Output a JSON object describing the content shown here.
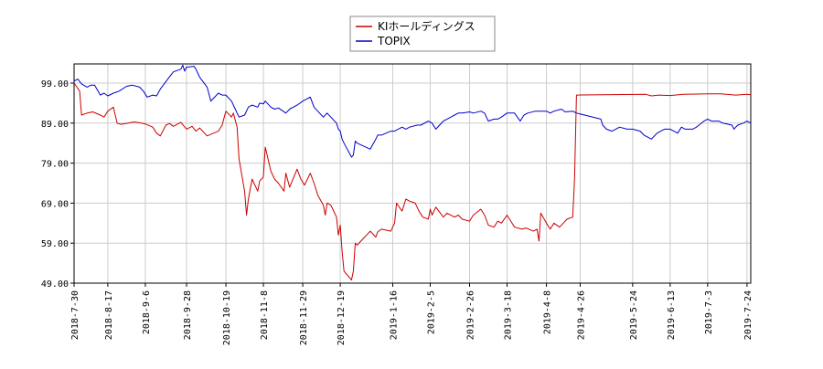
{
  "chart_data": {
    "type": "line",
    "title": "",
    "xlabel": "",
    "ylabel": "",
    "ylim": [
      49,
      99
    ],
    "yticks": [
      "99.00",
      "89.00",
      "79.00",
      "69.00",
      "59.00",
      "49.00"
    ],
    "ytick_values": [
      99,
      89,
      79,
      69,
      59,
      49
    ],
    "xlim": [
      "2018-07-30",
      "2019-07-26"
    ],
    "xticks": [
      "2018-7-30",
      "2018-8-17",
      "2018-9-6",
      "2018-9-28",
      "2018-10-19",
      "2018-11-8",
      "2018-11-29",
      "2018-12-19",
      "2019-1-16",
      "2019-2-5",
      "2019-2-26",
      "2019-3-18",
      "2019-4-8",
      "2019-4-26",
      "2019-5-24",
      "2019-6-13",
      "2019-7-3",
      "2019-7-24"
    ],
    "xtick_dates": [
      "2018-07-30",
      "2018-08-17",
      "2018-09-06",
      "2018-09-28",
      "2018-10-19",
      "2018-11-08",
      "2018-11-29",
      "2018-12-19",
      "2019-01-16",
      "2019-02-05",
      "2019-02-26",
      "2019-03-18",
      "2019-04-08",
      "2019-04-26",
      "2019-05-24",
      "2019-06-13",
      "2019-07-03",
      "2019-07-24"
    ],
    "grid": true,
    "legend_position": "top",
    "series": [
      {
        "name": "KIホールディングス",
        "color": "#cc0000",
        "points": [
          [
            "2018-07-30",
            99.0
          ],
          [
            "2018-08-02",
            97.0
          ],
          [
            "2018-08-03",
            91.0
          ],
          [
            "2018-08-06",
            91.5
          ],
          [
            "2018-08-09",
            91.8
          ],
          [
            "2018-08-13",
            91.0
          ],
          [
            "2018-08-15",
            90.5
          ],
          [
            "2018-08-17",
            92.0
          ],
          [
            "2018-08-20",
            93.0
          ],
          [
            "2018-08-22",
            89.0
          ],
          [
            "2018-08-24",
            88.7
          ],
          [
            "2018-08-28",
            89.0
          ],
          [
            "2018-08-31",
            89.3
          ],
          [
            "2018-09-04",
            89.0
          ],
          [
            "2018-09-06",
            88.8
          ],
          [
            "2018-09-10",
            88.0
          ],
          [
            "2018-09-12",
            86.5
          ],
          [
            "2018-09-14",
            85.8
          ],
          [
            "2018-09-17",
            88.5
          ],
          [
            "2018-09-19",
            88.9
          ],
          [
            "2018-09-21",
            88.2
          ],
          [
            "2018-09-25",
            89.2
          ],
          [
            "2018-09-28",
            87.5
          ],
          [
            "2018-10-01",
            88.2
          ],
          [
            "2018-10-03",
            87.0
          ],
          [
            "2018-10-05",
            87.8
          ],
          [
            "2018-10-09",
            85.8
          ],
          [
            "2018-10-11",
            86.2
          ],
          [
            "2018-10-15",
            87.0
          ],
          [
            "2018-10-17",
            88.5
          ],
          [
            "2018-10-19",
            92.0
          ],
          [
            "2018-10-22",
            90.5
          ],
          [
            "2018-10-23",
            91.5
          ],
          [
            "2018-10-25",
            88.0
          ],
          [
            "2018-10-26",
            80.0
          ],
          [
            "2018-10-29",
            72.0
          ],
          [
            "2018-10-30",
            66.0
          ],
          [
            "2018-10-31",
            70.0
          ],
          [
            "2018-11-02",
            75.0
          ],
          [
            "2018-11-05",
            72.0
          ],
          [
            "2018-11-06",
            74.5
          ],
          [
            "2018-11-08",
            75.5
          ],
          [
            "2018-11-09",
            83.0
          ],
          [
            "2018-11-12",
            77.0
          ],
          [
            "2018-11-14",
            75.0
          ],
          [
            "2018-11-16",
            74.0
          ],
          [
            "2018-11-19",
            72.0
          ],
          [
            "2018-11-20",
            76.5
          ],
          [
            "2018-11-22",
            73.0
          ],
          [
            "2018-11-26",
            77.5
          ],
          [
            "2018-11-28",
            75.0
          ],
          [
            "2018-11-30",
            73.5
          ],
          [
            "2018-12-03",
            76.5
          ],
          [
            "2018-12-05",
            74.0
          ],
          [
            "2018-12-07",
            71.0
          ],
          [
            "2018-12-10",
            68.5
          ],
          [
            "2018-12-11",
            66.0
          ],
          [
            "2018-12-12",
            69.0
          ],
          [
            "2018-12-14",
            68.5
          ],
          [
            "2018-12-17",
            65.5
          ],
          [
            "2018-12-18",
            61.0
          ],
          [
            "2018-12-19",
            63.5
          ],
          [
            "2018-12-20",
            57.0
          ],
          [
            "2018-12-21",
            52.0
          ],
          [
            "2018-12-25",
            49.8
          ],
          [
            "2018-12-26",
            52.0
          ],
          [
            "2018-12-27",
            59.0
          ],
          [
            "2018-12-28",
            58.5
          ],
          [
            "2019-01-04",
            62.0
          ],
          [
            "2019-01-07",
            60.5
          ],
          [
            "2019-01-08",
            61.8
          ],
          [
            "2019-01-10",
            62.5
          ],
          [
            "2019-01-15",
            62.0
          ],
          [
            "2019-01-17",
            64.0
          ],
          [
            "2019-01-18",
            69.0
          ],
          [
            "2019-01-21",
            67.0
          ],
          [
            "2019-01-23",
            70.0
          ],
          [
            "2019-01-25",
            69.5
          ],
          [
            "2019-01-28",
            69.0
          ],
          [
            "2019-01-30",
            67.0
          ],
          [
            "2019-02-01",
            65.5
          ],
          [
            "2019-02-04",
            65.0
          ],
          [
            "2019-02-05",
            67.5
          ],
          [
            "2019-02-06",
            66.0
          ],
          [
            "2019-02-08",
            68.0
          ],
          [
            "2019-02-12",
            65.5
          ],
          [
            "2019-02-14",
            66.5
          ],
          [
            "2019-02-18",
            65.5
          ],
          [
            "2019-02-20",
            66.0
          ],
          [
            "2019-02-22",
            65.0
          ],
          [
            "2019-02-26",
            64.5
          ],
          [
            "2019-02-28",
            66.0
          ],
          [
            "2019-03-04",
            67.5
          ],
          [
            "2019-03-06",
            66.0
          ],
          [
            "2019-03-08",
            63.5
          ],
          [
            "2019-03-11",
            63.0
          ],
          [
            "2019-03-13",
            64.5
          ],
          [
            "2019-03-15",
            64.0
          ],
          [
            "2019-03-18",
            66.0
          ],
          [
            "2019-03-20",
            64.5
          ],
          [
            "2019-03-22",
            63.0
          ],
          [
            "2019-03-26",
            62.5
          ],
          [
            "2019-03-28",
            62.8
          ],
          [
            "2019-04-01",
            62.0
          ],
          [
            "2019-04-03",
            62.5
          ],
          [
            "2019-04-04",
            59.5
          ],
          [
            "2019-04-05",
            66.5
          ],
          [
            "2019-04-08",
            64.0
          ],
          [
            "2019-04-10",
            62.5
          ],
          [
            "2019-04-12",
            64.0
          ],
          [
            "2019-04-15",
            63.0
          ],
          [
            "2019-04-17",
            64.0
          ],
          [
            "2019-04-19",
            65.0
          ],
          [
            "2019-04-22",
            65.5
          ],
          [
            "2019-04-23",
            75.0
          ],
          [
            "2019-04-24",
            96.0
          ],
          [
            "2019-05-31",
            96.2
          ],
          [
            "2019-06-03",
            95.8
          ],
          [
            "2019-06-07",
            96.0
          ],
          [
            "2019-06-13",
            95.9
          ],
          [
            "2019-06-20",
            96.2
          ],
          [
            "2019-07-03",
            96.3
          ],
          [
            "2019-07-10",
            96.3
          ],
          [
            "2019-07-18",
            96.0
          ],
          [
            "2019-07-24",
            96.2
          ],
          [
            "2019-07-26",
            96.1
          ]
        ]
      },
      {
        "name": "TOPIX",
        "color": "#0000cc",
        "points": [
          [
            "2018-07-30",
            99.5
          ],
          [
            "2018-08-01",
            100.0
          ],
          [
            "2018-08-03",
            98.8
          ],
          [
            "2018-08-06",
            98.0
          ],
          [
            "2018-08-08",
            98.5
          ],
          [
            "2018-08-10",
            98.5
          ],
          [
            "2018-08-13",
            96.0
          ],
          [
            "2018-08-15",
            96.5
          ],
          [
            "2018-08-17",
            95.8
          ],
          [
            "2018-08-20",
            96.5
          ],
          [
            "2018-08-23",
            97.0
          ],
          [
            "2018-08-27",
            98.2
          ],
          [
            "2018-08-30",
            98.5
          ],
          [
            "2018-09-03",
            98.0
          ],
          [
            "2018-09-05",
            97.0
          ],
          [
            "2018-09-07",
            95.5
          ],
          [
            "2018-09-10",
            96.0
          ],
          [
            "2018-09-12",
            95.8
          ],
          [
            "2018-09-14",
            97.5
          ],
          [
            "2018-09-18",
            100.0
          ],
          [
            "2018-09-21",
            101.8
          ],
          [
            "2018-09-25",
            102.5
          ],
          [
            "2018-09-26",
            103.5
          ],
          [
            "2018-09-27",
            102.0
          ],
          [
            "2018-09-28",
            103.0
          ],
          [
            "2018-10-02",
            103.2
          ],
          [
            "2018-10-03",
            102.5
          ],
          [
            "2018-10-04",
            101.5
          ],
          [
            "2018-10-05",
            100.5
          ],
          [
            "2018-10-09",
            98.0
          ],
          [
            "2018-10-11",
            94.5
          ],
          [
            "2018-10-12",
            95.0
          ],
          [
            "2018-10-15",
            96.5
          ],
          [
            "2018-10-17",
            96.0
          ],
          [
            "2018-10-19",
            96.0
          ],
          [
            "2018-10-22",
            94.5
          ],
          [
            "2018-10-24",
            92.5
          ],
          [
            "2018-10-25",
            91.5
          ],
          [
            "2018-10-26",
            90.5
          ],
          [
            "2018-10-29",
            91.0
          ],
          [
            "2018-10-31",
            93.0
          ],
          [
            "2018-11-02",
            93.5
          ],
          [
            "2018-11-05",
            93.0
          ],
          [
            "2018-11-06",
            94.0
          ],
          [
            "2018-11-08",
            93.8
          ],
          [
            "2018-11-09",
            94.5
          ],
          [
            "2018-11-12",
            93.0
          ],
          [
            "2018-11-14",
            92.5
          ],
          [
            "2018-11-16",
            92.8
          ],
          [
            "2018-11-20",
            91.5
          ],
          [
            "2018-11-22",
            92.5
          ],
          [
            "2018-11-26",
            93.5
          ],
          [
            "2018-11-29",
            94.5
          ],
          [
            "2018-12-03",
            95.5
          ],
          [
            "2018-12-05",
            93.0
          ],
          [
            "2018-12-07",
            92.0
          ],
          [
            "2018-12-10",
            90.5
          ],
          [
            "2018-12-12",
            91.5
          ],
          [
            "2018-12-14",
            90.5
          ],
          [
            "2018-12-17",
            89.0
          ],
          [
            "2018-12-18",
            87.5
          ],
          [
            "2018-12-19",
            87.0
          ],
          [
            "2018-12-20",
            85.0
          ],
          [
            "2018-12-21",
            84.0
          ],
          [
            "2018-12-25",
            80.5
          ],
          [
            "2018-12-26",
            81.0
          ],
          [
            "2018-12-27",
            84.5
          ],
          [
            "2018-12-28",
            84.0
          ],
          [
            "2019-01-04",
            82.5
          ],
          [
            "2019-01-07",
            85.0
          ],
          [
            "2019-01-08",
            86.0
          ],
          [
            "2019-01-10",
            86.0
          ],
          [
            "2019-01-15",
            87.0
          ],
          [
            "2019-01-17",
            87.0
          ],
          [
            "2019-01-21",
            88.0
          ],
          [
            "2019-01-23",
            87.5
          ],
          [
            "2019-01-25",
            88.0
          ],
          [
            "2019-01-29",
            88.5
          ],
          [
            "2019-01-31",
            88.5
          ],
          [
            "2019-02-04",
            89.5
          ],
          [
            "2019-02-06",
            89.0
          ],
          [
            "2019-02-08",
            87.5
          ],
          [
            "2019-02-12",
            89.5
          ],
          [
            "2019-02-14",
            90.0
          ],
          [
            "2019-02-18",
            91.0
          ],
          [
            "2019-02-20",
            91.5
          ],
          [
            "2019-02-22",
            91.5
          ],
          [
            "2019-02-26",
            91.8
          ],
          [
            "2019-02-28",
            91.5
          ],
          [
            "2019-03-04",
            92.0
          ],
          [
            "2019-03-06",
            91.5
          ],
          [
            "2019-03-08",
            89.5
          ],
          [
            "2019-03-11",
            90.0
          ],
          [
            "2019-03-13",
            90.0
          ],
          [
            "2019-03-15",
            90.5
          ],
          [
            "2019-03-18",
            91.5
          ],
          [
            "2019-03-20",
            91.5
          ],
          [
            "2019-03-22",
            91.5
          ],
          [
            "2019-03-25",
            89.5
          ],
          [
            "2019-03-27",
            91.0
          ],
          [
            "2019-03-29",
            91.5
          ],
          [
            "2019-04-02",
            92.0
          ],
          [
            "2019-04-04",
            92.0
          ],
          [
            "2019-04-08",
            92.0
          ],
          [
            "2019-04-10",
            91.5
          ],
          [
            "2019-04-12",
            92.0
          ],
          [
            "2019-04-16",
            92.5
          ],
          [
            "2019-04-18",
            91.8
          ],
          [
            "2019-04-22",
            92.0
          ],
          [
            "2019-04-24",
            91.5
          ],
          [
            "2019-05-07",
            90.0
          ],
          [
            "2019-05-08",
            88.5
          ],
          [
            "2019-05-10",
            87.5
          ],
          [
            "2019-05-13",
            87.0
          ],
          [
            "2019-05-15",
            87.5
          ],
          [
            "2019-05-17",
            88.0
          ],
          [
            "2019-05-21",
            87.5
          ],
          [
            "2019-05-24",
            87.5
          ],
          [
            "2019-05-28",
            87.0
          ],
          [
            "2019-05-30",
            86.0
          ],
          [
            "2019-06-03",
            85.0
          ],
          [
            "2019-06-04",
            85.5
          ],
          [
            "2019-06-06",
            86.5
          ],
          [
            "2019-06-10",
            87.5
          ],
          [
            "2019-06-13",
            87.5
          ],
          [
            "2019-06-17",
            86.5
          ],
          [
            "2019-06-19",
            88.0
          ],
          [
            "2019-06-21",
            87.5
          ],
          [
            "2019-06-25",
            87.5
          ],
          [
            "2019-06-27",
            88.0
          ],
          [
            "2019-07-01",
            89.5
          ],
          [
            "2019-07-03",
            90.0
          ],
          [
            "2019-07-05",
            89.5
          ],
          [
            "2019-07-09",
            89.5
          ],
          [
            "2019-07-11",
            89.0
          ],
          [
            "2019-07-16",
            88.5
          ],
          [
            "2019-07-17",
            87.5
          ],
          [
            "2019-07-18",
            88.0
          ],
          [
            "2019-07-19",
            88.5
          ],
          [
            "2019-07-22",
            89.0
          ],
          [
            "2019-07-24",
            89.5
          ],
          [
            "2019-07-26",
            89.0
          ]
        ]
      }
    ]
  }
}
